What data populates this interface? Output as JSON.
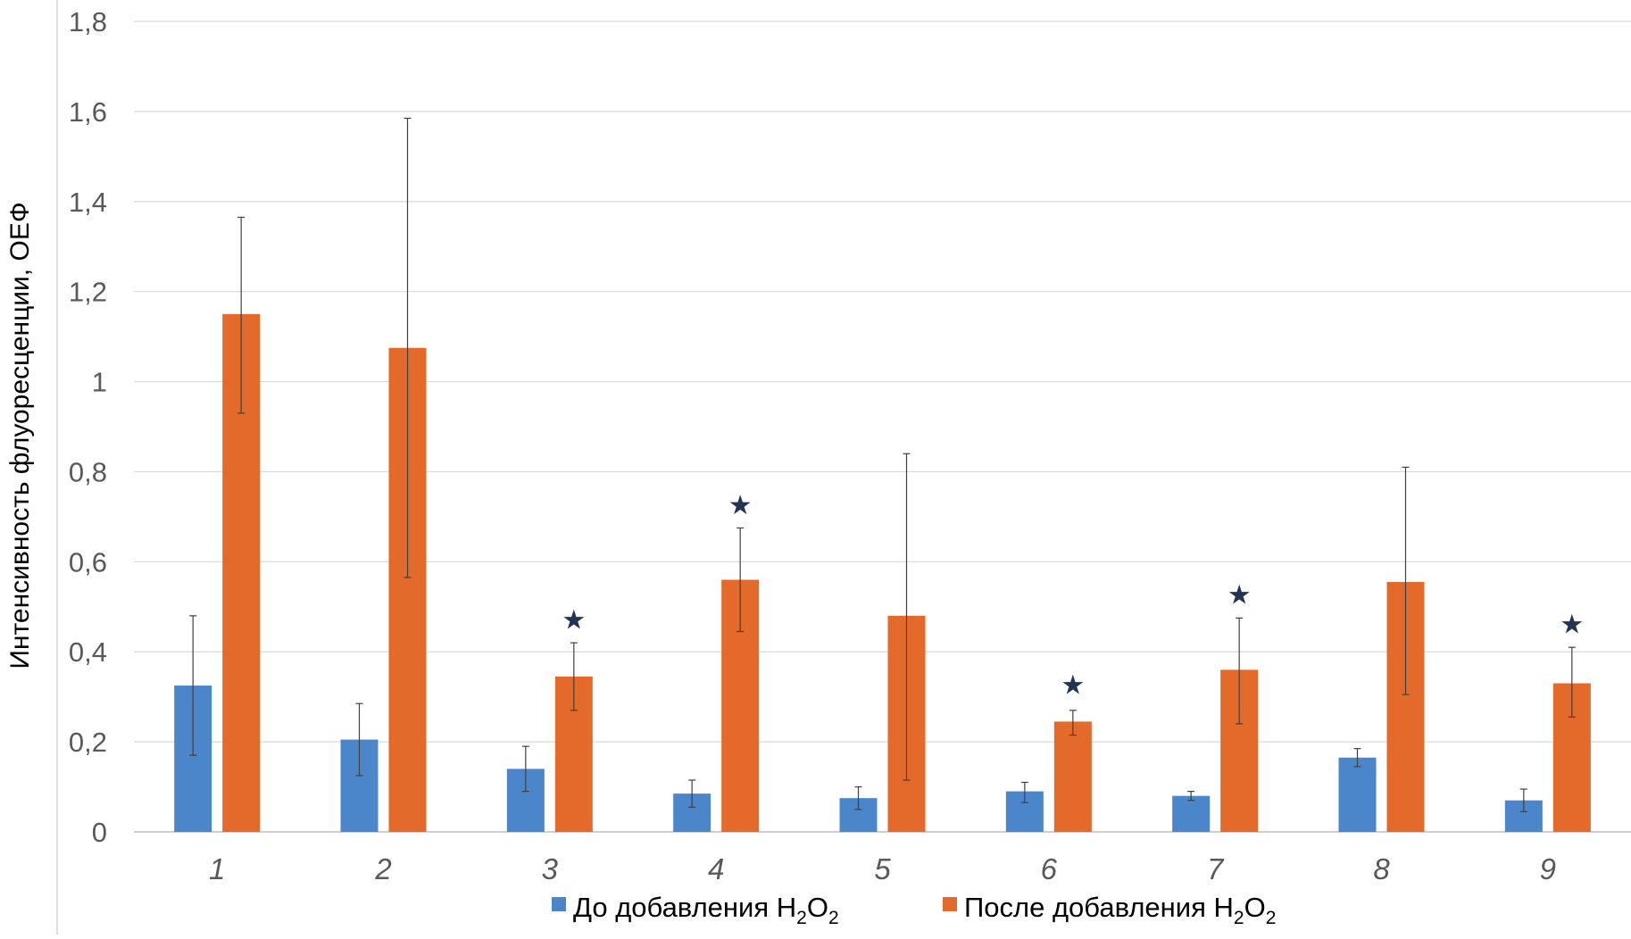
{
  "chart_data": {
    "type": "bar",
    "title": "",
    "ylabel": "Интенсивность флуоресценции, ОЕФ",
    "xlabel": "",
    "categories": [
      "1",
      "2",
      "3",
      "4",
      "5",
      "6",
      "7",
      "8",
      "9"
    ],
    "ylim": [
      0,
      1.8
    ],
    "ytick_values": [
      0,
      0.2,
      0.4,
      0.6,
      0.8,
      1.0,
      1.2,
      1.4,
      1.6,
      1.8
    ],
    "ytick_labels": [
      "0",
      "0,2",
      "0,4",
      "0,6",
      "0,8",
      "1",
      "1,2",
      "1,4",
      "1,6",
      "1,8"
    ],
    "grid": true,
    "legend_position": "bottom-center",
    "series": [
      {
        "name": "До добавления H2O2",
        "legend_prefix": "До добавления H",
        "legend_sub1": "2",
        "legend_mid": "O",
        "legend_sub2": "2",
        "color": "#4A86C9",
        "values": [
          0.325,
          0.205,
          0.14,
          0.085,
          0.075,
          0.09,
          0.08,
          0.165,
          0.07
        ],
        "err_low": [
          0.17,
          0.125,
          0.09,
          0.055,
          0.05,
          0.065,
          0.07,
          0.145,
          0.045
        ],
        "err_high": [
          0.48,
          0.285,
          0.19,
          0.115,
          0.1,
          0.11,
          0.09,
          0.185,
          0.095
        ]
      },
      {
        "name": "После добавления H2O2",
        "legend_prefix": "После добавления H",
        "legend_sub1": "2",
        "legend_mid": "O",
        "legend_sub2": "2",
        "color": "#E36A2A",
        "values": [
          1.15,
          1.075,
          0.345,
          0.56,
          0.48,
          0.245,
          0.36,
          0.555,
          0.33
        ],
        "err_low": [
          0.93,
          0.565,
          0.27,
          0.445,
          0.115,
          0.215,
          0.24,
          0.305,
          0.255
        ],
        "err_high": [
          1.365,
          1.585,
          0.42,
          0.675,
          0.84,
          0.27,
          0.475,
          0.81,
          0.41
        ]
      }
    ],
    "significance_markers": [
      {
        "category": "3",
        "symbol": "★",
        "value": 0.475
      },
      {
        "category": "4",
        "symbol": "★",
        "value": 0.73
      },
      {
        "category": "6",
        "symbol": "★",
        "value": 0.33
      },
      {
        "category": "7",
        "symbol": "★",
        "value": 0.53
      },
      {
        "category": "9",
        "symbol": "★",
        "value": 0.465
      }
    ],
    "colors": {
      "grid": "#d9d9d9",
      "axis_line": "#bfbfbf",
      "text": "#595959",
      "star": "#1F3552",
      "error_bar": "#404040"
    }
  }
}
